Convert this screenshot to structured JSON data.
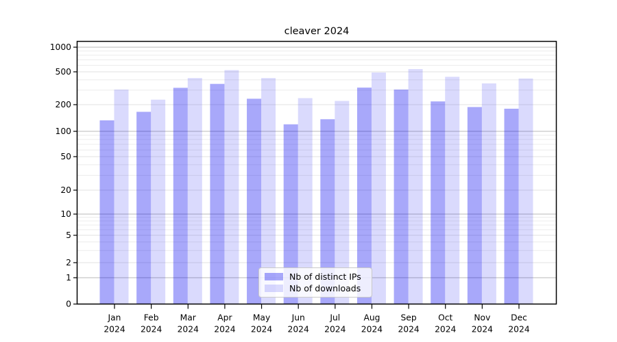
{
  "chart_data": {
    "type": "bar",
    "title": "cleaver 2024",
    "categories": [
      "Jan",
      "Feb",
      "Mar",
      "Apr",
      "May",
      "Jun",
      "Jul",
      "Aug",
      "Sep",
      "Oct",
      "Nov",
      "Dec"
    ],
    "x_sub_label": "2024",
    "series": [
      {
        "name": "Nb of distinct IPs",
        "color": "rgba(0,0,240,0.34)",
        "values": [
          133,
          166,
          320,
          357,
          236,
          120,
          137,
          322,
          305,
          219,
          188,
          180
        ]
      },
      {
        "name": "Nb of downloads",
        "color": "rgba(0,0,240,0.145)",
        "values": [
          305,
          230,
          420,
          524,
          420,
          240,
          222,
          490,
          540,
          435,
          362,
          415
        ]
      }
    ],
    "xlabel": "",
    "ylabel": "",
    "y_axis": {
      "scale": "log-like with zero baseline",
      "tick_labels": [
        "0",
        "1",
        "2",
        "5",
        "10",
        "20",
        "50",
        "100",
        "200",
        "500",
        "1000"
      ],
      "ticks": [
        0,
        1,
        2,
        5,
        10,
        20,
        50,
        100,
        200,
        500,
        1000
      ],
      "ylim": [
        0,
        1000
      ]
    },
    "grid": "horizontal major and minor gridlines",
    "minor_gridlines": [
      3,
      4,
      6,
      7,
      8,
      9,
      30,
      40,
      60,
      70,
      80,
      90,
      300,
      400,
      600,
      700,
      800,
      900
    ],
    "legend": {
      "position": "lower center inside plot",
      "entries": [
        "Nb of distinct IPs",
        "Nb of downloads"
      ]
    },
    "colors": {
      "decade_gridline": "#b8b8b8",
      "labeled_gridline": "#e2e2e2",
      "minor_gridline": "#ececec",
      "axis": "#000000",
      "text": "#000000"
    }
  }
}
